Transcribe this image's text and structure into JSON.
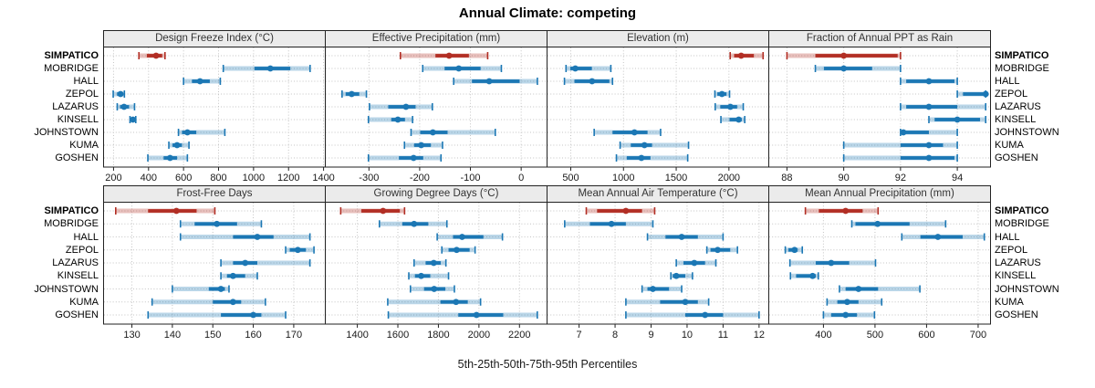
{
  "title": "Annual Climate: competing",
  "caption": "5th-25th-50th-75th-95th Percentiles",
  "colors": {
    "highlight": "#b22e24",
    "normal": "#1b77b4",
    "grid": "#c4c4c4",
    "panel_border": "#222222",
    "header_bg": "#ebebeb"
  },
  "chart_data": {
    "type": "dotplot-percentiles",
    "percentile_levels": [
      5,
      25,
      50,
      75,
      95
    ],
    "stations": [
      "SIMPATICO",
      "MOBRIDGE",
      "HALL",
      "ZEPOL",
      "LAZARUS",
      "KINSELL",
      "JOHNSTOWN",
      "KUMA",
      "GOSHEN"
    ],
    "highlight_station": "SIMPATICO",
    "legend_position": "none",
    "grid": "dotted",
    "panels": [
      {
        "title": "Design Freeze Index (°C)",
        "row": 0,
        "ticks": [
          200,
          400,
          600,
          800,
          1000,
          1200,
          1400
        ],
        "xlim": [
          143,
          1410
        ],
        "series": [
          [
            345,
            390,
            443,
            478,
            494
          ],
          [
            827,
            1005,
            1096,
            1210,
            1323
          ],
          [
            600,
            648,
            694,
            750,
            810
          ],
          [
            198,
            220,
            240,
            253,
            262
          ],
          [
            221,
            237,
            260,
            289,
            320
          ],
          [
            294,
            303,
            311,
            320,
            327
          ],
          [
            571,
            591,
            622,
            673,
            836
          ],
          [
            516,
            537,
            563,
            591,
            631
          ],
          [
            396,
            486,
            523,
            563,
            622
          ]
        ]
      },
      {
        "title": "Effective Precipitation (mm)",
        "row": 0,
        "ticks": [
          -300,
          -200,
          -100,
          0
        ],
        "xlim": [
          -386,
          51
        ],
        "series": [
          [
            -238,
            -169,
            -142,
            -103,
            -66
          ],
          [
            -194,
            -151,
            -123,
            -80,
            -39
          ],
          [
            -133,
            -97,
            -63,
            -3,
            32
          ],
          [
            -353,
            -346,
            -334,
            -319,
            -305
          ],
          [
            -299,
            -262,
            -227,
            -208,
            -175
          ],
          [
            -301,
            -256,
            -243,
            -229,
            -214
          ],
          [
            -217,
            -199,
            -174,
            -145,
            -51
          ],
          [
            -230,
            -211,
            -197,
            -178,
            -155
          ],
          [
            -301,
            -241,
            -212,
            -193,
            -158
          ]
        ]
      },
      {
        "title": "Elevation (m)",
        "row": 0,
        "ticks": [
          500,
          1000,
          1500,
          2000
        ],
        "xlim": [
          275,
          2378
        ],
        "series": [
          [
            2012,
            2049,
            2116,
            2237,
            2324
          ],
          [
            455,
            495,
            543,
            700,
            880
          ],
          [
            440,
            535,
            702,
            866,
            896
          ],
          [
            1867,
            1890,
            1934,
            1977,
            2006
          ],
          [
            1870,
            1918,
            2014,
            2078,
            2136
          ],
          [
            1924,
            2006,
            2093,
            2121,
            2150
          ],
          [
            722,
            896,
            1104,
            1228,
            1352
          ],
          [
            968,
            1069,
            1199,
            1271,
            1617
          ],
          [
            933,
            1031,
            1170,
            1256,
            1609
          ]
        ]
      },
      {
        "title": "Fraction of Annual PPT as Rain",
        "row": 0,
        "ticks": [
          88,
          90,
          92,
          94
        ],
        "xlim": [
          87.36,
          95.17
        ],
        "series": [
          [
            88,
            89,
            90,
            91.9,
            92
          ],
          [
            89,
            89.3,
            90,
            91,
            92
          ],
          [
            92,
            92.2,
            93,
            93.9,
            94
          ],
          [
            94,
            94.2,
            95,
            95,
            95
          ],
          [
            92,
            92.2,
            93,
            94,
            95
          ],
          [
            93,
            93.2,
            94,
            94.8,
            95
          ],
          [
            92,
            92,
            92.1,
            93,
            94
          ],
          [
            90,
            92,
            93,
            93.5,
            94
          ],
          [
            90,
            92,
            93,
            93.9,
            94
          ]
        ]
      },
      {
        "title": "Frost-Free Days",
        "row": 1,
        "ticks": [
          130,
          140,
          150,
          160,
          170
        ],
        "xlim": [
          123,
          177.8
        ],
        "series": [
          [
            126,
            134,
            141,
            146,
            150.5
          ],
          [
            142,
            145.5,
            151,
            156,
            162
          ],
          [
            142,
            155,
            161,
            165,
            174
          ],
          [
            168,
            169,
            171,
            173,
            175
          ],
          [
            152,
            155,
            158,
            161,
            174
          ],
          [
            152,
            153.5,
            155,
            158,
            161
          ],
          [
            140,
            149,
            152,
            153,
            154
          ],
          [
            135,
            150,
            155,
            157,
            163
          ],
          [
            134,
            152,
            160,
            162,
            168
          ]
        ]
      },
      {
        "title": "Growing Degree Days (°C)",
        "row": 1,
        "ticks": [
          1400,
          1600,
          1800,
          2000,
          2200
        ],
        "xlim": [
          1242,
          2336
        ],
        "series": [
          [
            1318,
            1420,
            1527,
            1610,
            1633
          ],
          [
            1509,
            1622,
            1680,
            1750,
            1842
          ],
          [
            1794,
            1872,
            1917,
            2022,
            2116
          ],
          [
            1817,
            1850,
            1890,
            1954,
            1981
          ],
          [
            1680,
            1737,
            1777,
            1812,
            1837
          ],
          [
            1654,
            1684,
            1715,
            1760,
            1850
          ],
          [
            1662,
            1729,
            1779,
            1834,
            1879
          ],
          [
            1550,
            1810,
            1887,
            1945,
            2008
          ],
          [
            1553,
            1898,
            1988,
            2120,
            2288
          ]
        ]
      },
      {
        "title": "Mean Annual Air Temperature (°C)",
        "row": 1,
        "ticks": [
          7,
          8,
          9,
          10,
          11,
          12
        ],
        "xlim": [
          6.11,
          12.27
        ],
        "series": [
          [
            7.2,
            7.5,
            8.3,
            8.75,
            9.1
          ],
          [
            6.6,
            7.3,
            7.9,
            8.3,
            9.05
          ],
          [
            8.9,
            9.4,
            9.85,
            10.3,
            11.0
          ],
          [
            10.55,
            10.65,
            10.85,
            11.2,
            11.4
          ],
          [
            9.7,
            9.9,
            10.2,
            10.5,
            10.8
          ],
          [
            9.55,
            9.6,
            9.7,
            9.95,
            10.15
          ],
          [
            8.75,
            8.9,
            9.05,
            9.5,
            9.85
          ],
          [
            8.3,
            9.25,
            9.95,
            10.3,
            10.6
          ],
          [
            8.3,
            9.95,
            10.5,
            11.0,
            12.0
          ]
        ]
      },
      {
        "title": "Mean Annual Precipitation (mm)",
        "row": 1,
        "ticks": [
          400,
          500,
          600,
          700
        ],
        "xlim": [
          294,
          724
        ],
        "series": [
          [
            365,
            391,
            443,
            476,
            506
          ],
          [
            455,
            462,
            505,
            567,
            637
          ],
          [
            552,
            588,
            622,
            670,
            712
          ],
          [
            326,
            332,
            344,
            350,
            359
          ],
          [
            335,
            385,
            415,
            450,
            501
          ],
          [
            336,
            347,
            379,
            385,
            390
          ],
          [
            431,
            443,
            468,
            506,
            587
          ],
          [
            407,
            427,
            446,
            468,
            513
          ],
          [
            400,
            415,
            443,
            465,
            499
          ]
        ]
      }
    ]
  }
}
